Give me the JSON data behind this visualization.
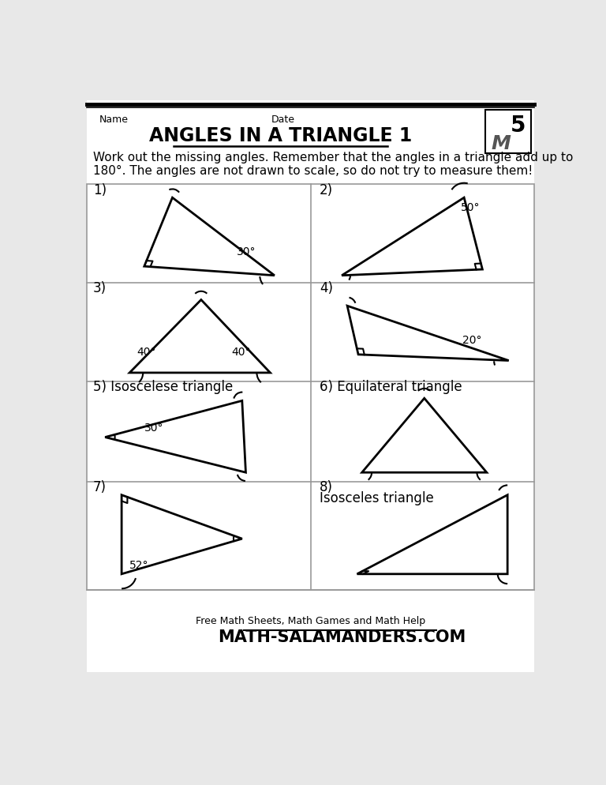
{
  "title": "ANGLES IN A TRIANGLE 1",
  "name_label": "Name",
  "date_label": "Date",
  "instruction_line1": "Work out the missing angles. Remember that the angles in a triangle add up to",
  "instruction_line2": "180°. The angles are not drawn to scale, so do not try to measure them!",
  "bg_color": "#e8e8e8",
  "paper_color": "#ffffff",
  "grid_color": "#999999",
  "footer_text": "Free Math Sheets, Math Games and Math Help",
  "footer_url": "ATH-SALAMANDERS.COM",
  "problems": [
    {
      "label": "1)",
      "angle_label": "30°",
      "type": "right_top_right_bottom_left"
    },
    {
      "label": "2)",
      "angle_label": "50°",
      "type": "right_bottom_right_top_right"
    },
    {
      "label": "3)",
      "angle_label1": "40°",
      "angle_label2": "40°",
      "type": "isoceles_base"
    },
    {
      "label": "4)",
      "angle_label": "20°",
      "type": "right_left_flat"
    },
    {
      "label": "5) Isoscelese triangle",
      "angle_label": "30°",
      "type": "isosceles_arrow"
    },
    {
      "label": "6) Equilateral triangle",
      "type": "equilateral"
    },
    {
      "label": "7)",
      "angle_label": "52°",
      "type": "right_top_left"
    },
    {
      "label": "8)",
      "sublabel": "Isosceles triangle",
      "type": "isosceles_right"
    }
  ]
}
